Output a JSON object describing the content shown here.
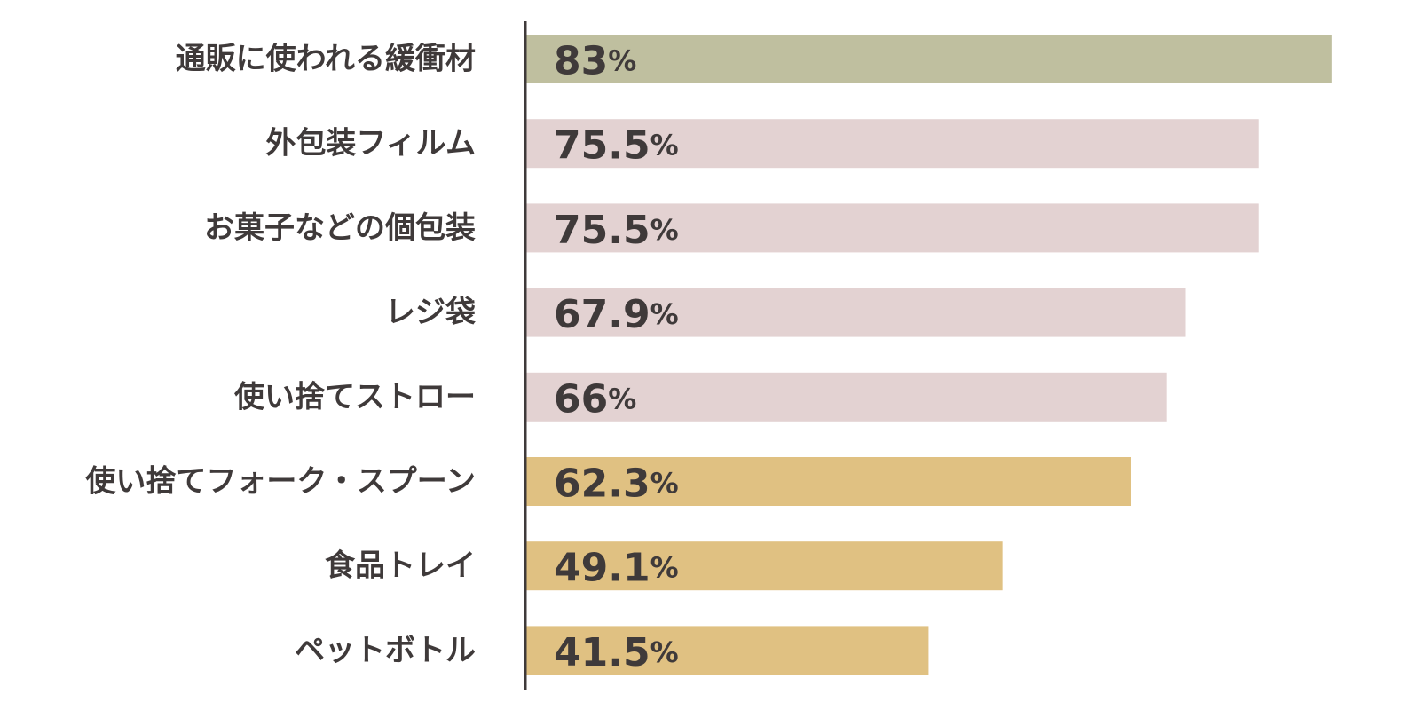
{
  "chart_data": {
    "type": "bar",
    "orientation": "horizontal",
    "categories": [
      "通販に使われる緩衝材",
      "外包装フィルム",
      "お菓子などの個包装",
      "レジ袋",
      "使い捨てストロー",
      "使い捨てフォーク・スプーン",
      "食品トレイ",
      "ペットボトル"
    ],
    "values": [
      83,
      75.5,
      75.5,
      67.9,
      66,
      62.3,
      49.1,
      41.5
    ],
    "value_labels": [
      "83",
      "75.5",
      "75.5",
      "67.9",
      "66",
      "62.3",
      "49.1",
      "41.5"
    ],
    "unit": "%",
    "bar_colors": [
      "#bfbf9f",
      "#e3d2d2",
      "#e3d2d2",
      "#e3d2d2",
      "#e3d2d2",
      "#e0c182",
      "#e0c182",
      "#e0c182"
    ],
    "title": "",
    "xlabel": "",
    "ylabel": "",
    "xlim": [
      0,
      100
    ],
    "grid": false,
    "legend": "none"
  }
}
